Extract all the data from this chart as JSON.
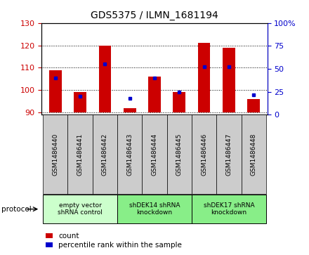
{
  "title": "GDS5375 / ILMN_1681194",
  "samples": [
    "GSM1486440",
    "GSM1486441",
    "GSM1486442",
    "GSM1486443",
    "GSM1486444",
    "GSM1486445",
    "GSM1486446",
    "GSM1486447",
    "GSM1486448"
  ],
  "counts": [
    109,
    99,
    120,
    92,
    106,
    99,
    121,
    119,
    96
  ],
  "percentiles": [
    40,
    20,
    55,
    18,
    40,
    25,
    52,
    52,
    22
  ],
  "ylim_left": [
    89,
    130
  ],
  "ylim_right": [
    0,
    100
  ],
  "yticks_left": [
    90,
    100,
    110,
    120,
    130
  ],
  "yticks_right": [
    0,
    25,
    50,
    75,
    100
  ],
  "bar_color": "#cc0000",
  "dot_color": "#0000cc",
  "bar_bottom": 90,
  "protocols": [
    {
      "label": "empty vector\nshRNA control",
      "start": 0,
      "end": 3,
      "color": "#ccffcc"
    },
    {
      "label": "shDEK14 shRNA\nknockdown",
      "start": 3,
      "end": 6,
      "color": "#88ee88"
    },
    {
      "label": "shDEK17 shRNA\nknockdown",
      "start": 6,
      "end": 9,
      "color": "#88ee88"
    }
  ],
  "protocol_label": "protocol",
  "legend_count": "count",
  "legend_percentile": "percentile rank within the sample",
  "title_fontsize": 10,
  "axis_color_left": "#cc0000",
  "axis_color_right": "#0000cc",
  "tick_bg_color": "#cccccc",
  "bar_width": 0.5,
  "figsize": [
    4.4,
    3.63
  ],
  "dpi": 100
}
